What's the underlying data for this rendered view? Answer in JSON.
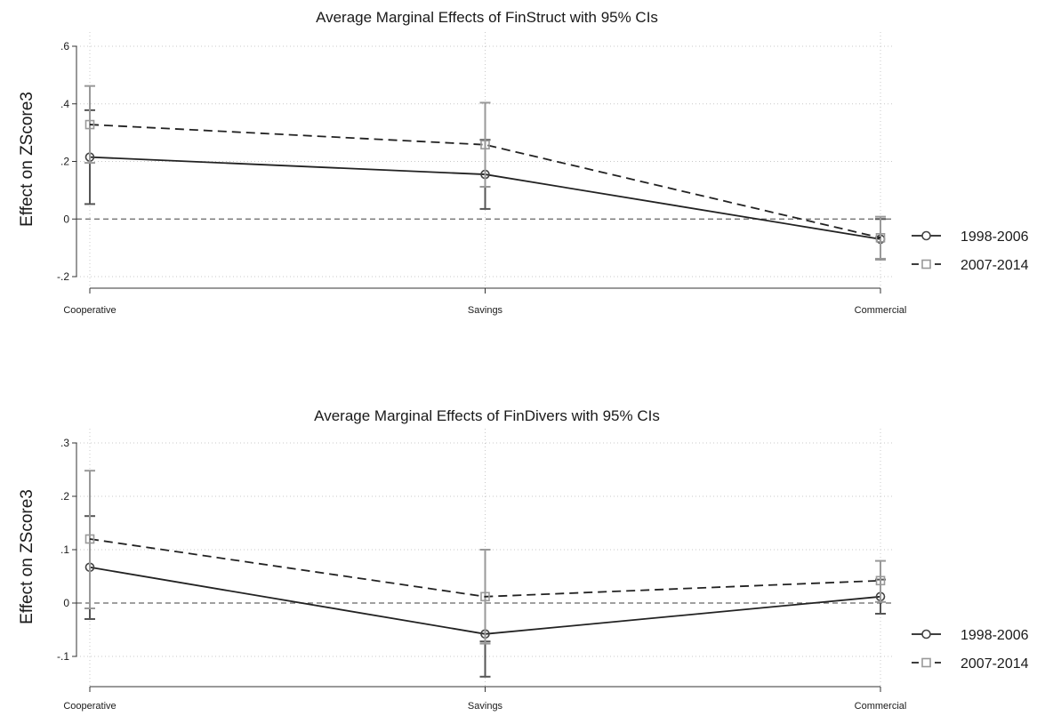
{
  "chart_data": [
    {
      "type": "line",
      "title": "Average Marginal Effects of FinStruct with 95% CIs",
      "ylabel": "Effect on ZScore3",
      "xlabel": "",
      "categories": [
        "Cooperative",
        "Savings",
        "Commercial"
      ],
      "ylim": [
        -0.2,
        0.6
      ],
      "yticks": [
        -0.2,
        0,
        0.2,
        0.4,
        0.6
      ],
      "ytick_labels": [
        "-.2",
        "0",
        ".2",
        ".4",
        ".6"
      ],
      "reference_line": 0,
      "grid": true,
      "legend_position": "right",
      "series": [
        {
          "name": "1998-2006",
          "style": "solid",
          "marker": "circle",
          "color": "#222222",
          "ci_color": "#555555",
          "values": [
            0.215,
            0.155,
            -0.07
          ],
          "ci_low": [
            0.052,
            0.035,
            -0.14
          ],
          "ci_high": [
            0.378,
            0.275,
            0.0
          ]
        },
        {
          "name": "2007-2014",
          "style": "dashed",
          "marker": "square",
          "color": "#222222",
          "ci_color": "#999999",
          "values": [
            0.328,
            0.258,
            -0.065
          ],
          "ci_low": [
            0.195,
            0.112,
            -0.138
          ],
          "ci_high": [
            0.462,
            0.404,
            0.008
          ]
        }
      ]
    },
    {
      "type": "line",
      "title": "Average Marginal Effects of FinDivers with 95% CIs",
      "ylabel": "Effect on ZScore3",
      "xlabel": "",
      "categories": [
        "Cooperative",
        "Savings",
        "Commercial"
      ],
      "ylim": [
        -0.15,
        0.3
      ],
      "yticks": [
        -0.1,
        0,
        0.1,
        0.2,
        0.3
      ],
      "ytick_labels": [
        "-.1",
        "0",
        ".1",
        ".2",
        ".3"
      ],
      "reference_line": 0,
      "grid": true,
      "legend_position": "right",
      "series": [
        {
          "name": "1998-2006",
          "style": "solid",
          "marker": "circle",
          "color": "#222222",
          "ci_color": "#555555",
          "values": [
            0.067,
            -0.058,
            0.012
          ],
          "ci_low": [
            -0.03,
            -0.138,
            -0.02
          ],
          "ci_high": [
            0.163,
            -0.072,
            0.044
          ]
        },
        {
          "name": "2007-2014",
          "style": "dashed",
          "marker": "square",
          "color": "#222222",
          "ci_color": "#999999",
          "values": [
            0.12,
            0.012,
            0.042
          ],
          "ci_low": [
            -0.01,
            -0.076,
            0.002
          ],
          "ci_high": [
            0.248,
            0.1,
            0.079
          ]
        }
      ]
    }
  ]
}
